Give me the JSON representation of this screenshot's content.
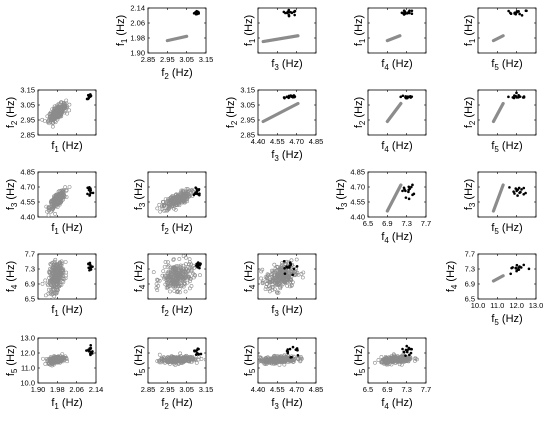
{
  "chart_data": {
    "type": "scatter-matrix",
    "variables": [
      {
        "id": "f1",
        "symbol": "f",
        "sub": "1",
        "unit": "(Hz)",
        "range": [
          1.9,
          2.14
        ],
        "ticks": [
          "1.90",
          "1.98",
          "2.06",
          "2.14"
        ]
      },
      {
        "id": "f2",
        "symbol": "f",
        "sub": "2",
        "unit": "(Hz)",
        "range": [
          2.85,
          3.15
        ],
        "ticks": [
          "2.85",
          "2.95",
          "3.05",
          "3.15"
        ]
      },
      {
        "id": "f3",
        "symbol": "f",
        "sub": "3",
        "unit": "(Hz)",
        "range": [
          4.4,
          4.85
        ],
        "ticks": [
          "4.40",
          "4.55",
          "4.70",
          "4.85"
        ]
      },
      {
        "id": "f4",
        "symbol": "f",
        "sub": "4",
        "unit": "(Hz)",
        "range": [
          6.5,
          7.7
        ],
        "ticks": [
          "6.5",
          "6.9",
          "7.3",
          "7.7"
        ]
      },
      {
        "id": "f5",
        "symbol": "f",
        "sub": "5",
        "unit": "(Hz)",
        "range": [
          10.0,
          13.0
        ],
        "ticks": [
          "10.0",
          "11.0",
          "12.0",
          "13.0"
        ]
      }
    ],
    "series": [
      {
        "kind": "grey-line",
        "color": "#8c8c8c",
        "description_shown": "straight grey linear relation (upper triangle)"
      },
      {
        "kind": "grey-cloud",
        "color": "#8c8c8c",
        "description_shown": "grey open-circle scatter cloud (lower triangle)"
      },
      {
        "kind": "black-dots",
        "color": "#000000",
        "description_shown": "small black measured points"
      }
    ],
    "panels": [
      {
        "row": 0,
        "col": 1,
        "type": "line",
        "x": "f2",
        "y": "f1",
        "ticks_x": true,
        "ticks_y": true,
        "line": [
          [
            2.95,
            1.966
          ],
          [
            3.05,
            1.989
          ]
        ],
        "black_center": [
          3.105,
          2.115
        ],
        "black_spread": [
          0.008,
          0.006
        ]
      },
      {
        "row": 0,
        "col": 2,
        "type": "line",
        "x": "f3",
        "y": "f1",
        "line": [
          [
            4.44,
            1.961
          ],
          [
            4.71,
            1.992
          ]
        ],
        "black_center": [
          4.65,
          2.115
        ],
        "black_spread": [
          0.03,
          0.007
        ]
      },
      {
        "row": 0,
        "col": 3,
        "type": "line",
        "x": "f4",
        "y": "f1",
        "line": [
          [
            6.9,
            1.966
          ],
          [
            7.16,
            1.992
          ]
        ],
        "black_center": [
          7.32,
          2.115
        ],
        "black_spread": [
          0.06,
          0.007
        ]
      },
      {
        "row": 0,
        "col": 4,
        "type": "line",
        "x": "f5",
        "y": "f1",
        "line": [
          [
            10.8,
            1.966
          ],
          [
            11.3,
            1.992
          ]
        ],
        "black_center": [
          12.1,
          2.115
        ],
        "black_spread": [
          0.25,
          0.007
        ]
      },
      {
        "row": 1,
        "col": 0,
        "type": "cloud",
        "x": "f1",
        "y": "f2",
        "ticks_y": true,
        "cloud_center": [
          1.98,
          3.0
        ],
        "cloud_spread": [
          0.018,
          0.03
        ],
        "cloud_corr": 0.7,
        "black_center": [
          2.115,
          3.105
        ],
        "black_spread": [
          0.006,
          0.008
        ]
      },
      {
        "row": 1,
        "col": 2,
        "type": "line",
        "x": "f3",
        "y": "f2",
        "ticks_x": true,
        "ticks_y": true,
        "line": [
          [
            4.44,
            2.94
          ],
          [
            4.71,
            3.06
          ]
        ],
        "black_center": [
          4.65,
          3.105
        ],
        "black_spread": [
          0.03,
          0.008
        ]
      },
      {
        "row": 1,
        "col": 3,
        "type": "line",
        "x": "f4",
        "y": "f2",
        "line": [
          [
            6.9,
            2.94
          ],
          [
            7.18,
            3.06
          ]
        ],
        "black_center": [
          7.32,
          3.105
        ],
        "black_spread": [
          0.07,
          0.008
        ]
      },
      {
        "row": 1,
        "col": 4,
        "type": "line",
        "x": "f5",
        "y": "f2",
        "line": [
          [
            10.8,
            2.94
          ],
          [
            11.3,
            3.06
          ]
        ],
        "black_center": [
          12.1,
          3.105
        ],
        "black_spread": [
          0.25,
          0.008
        ]
      },
      {
        "row": 2,
        "col": 0,
        "type": "cloud",
        "x": "f1",
        "y": "f3",
        "ticks_y": true,
        "cloud_center": [
          1.98,
          4.57
        ],
        "cloud_spread": [
          0.016,
          0.045
        ],
        "cloud_corr": 0.75,
        "black_center": [
          2.115,
          4.66
        ],
        "black_spread": [
          0.006,
          0.03
        ]
      },
      {
        "row": 2,
        "col": 1,
        "type": "cloud",
        "x": "f2",
        "y": "f3",
        "cloud_center": [
          3.0,
          4.57
        ],
        "cloud_spread": [
          0.035,
          0.045
        ],
        "cloud_corr": 0.7,
        "black_center": [
          3.105,
          4.66
        ],
        "black_spread": [
          0.008,
          0.03
        ]
      },
      {
        "row": 2,
        "col": 3,
        "type": "line",
        "x": "f4",
        "y": "f3",
        "ticks_x": true,
        "ticks_y": true,
        "line": [
          [
            6.9,
            4.46
          ],
          [
            7.18,
            4.72
          ]
        ],
        "black_center": [
          7.32,
          4.66
        ],
        "black_spread": [
          0.06,
          0.03
        ]
      },
      {
        "row": 2,
        "col": 4,
        "type": "line",
        "x": "f5",
        "y": "f3",
        "line": [
          [
            10.8,
            4.46
          ],
          [
            11.3,
            4.72
          ]
        ],
        "black_center": [
          12.1,
          4.66
        ],
        "black_spread": [
          0.25,
          0.03
        ]
      },
      {
        "row": 3,
        "col": 0,
        "type": "cloud",
        "x": "f1",
        "y": "f4",
        "ticks_y": true,
        "cloud_center": [
          1.975,
          7.1
        ],
        "cloud_spread": [
          0.015,
          0.2
        ],
        "cloud_corr": 0.3,
        "black_center": [
          2.115,
          7.35
        ],
        "black_spread": [
          0.006,
          0.08
        ]
      },
      {
        "row": 3,
        "col": 1,
        "type": "cloud",
        "x": "f2",
        "y": "f4",
        "cloud_center": [
          3.0,
          7.1
        ],
        "cloud_spread": [
          0.04,
          0.18
        ],
        "cloud_corr": 0.2,
        "black_center": [
          3.105,
          7.35
        ],
        "black_spread": [
          0.008,
          0.08
        ]
      },
      {
        "row": 3,
        "col": 2,
        "type": "cloud",
        "x": "f3",
        "y": "f4",
        "cloud_center": [
          4.58,
          7.1
        ],
        "cloud_spread": [
          0.06,
          0.18
        ],
        "cloud_corr": 0.3,
        "black_center": [
          4.66,
          7.35
        ],
        "black_spread": [
          0.03,
          0.08
        ]
      },
      {
        "row": 3,
        "col": 4,
        "type": "line",
        "x": "f5",
        "y": "f4",
        "ticks_x": true,
        "ticks_y": true,
        "line": [
          [
            10.8,
            6.98
          ],
          [
            11.3,
            7.12
          ]
        ],
        "black_center": [
          12.1,
          7.32
        ],
        "black_spread": [
          0.25,
          0.07
        ]
      },
      {
        "row": 4,
        "col": 0,
        "type": "cloud",
        "x": "f1",
        "y": "f5",
        "ticks_x": true,
        "ticks_y": true,
        "cloud_center": [
          1.975,
          11.55
        ],
        "cloud_spread": [
          0.016,
          0.12
        ],
        "cloud_corr": 0.4,
        "black_center": [
          2.115,
          12.1
        ],
        "black_spread": [
          0.006,
          0.2
        ]
      },
      {
        "row": 4,
        "col": 1,
        "type": "cloud",
        "x": "f2",
        "y": "f5",
        "ticks_x": true,
        "cloud_center": [
          3.0,
          11.55
        ],
        "cloud_spread": [
          0.045,
          0.12
        ],
        "cloud_corr": 0.3,
        "black_center": [
          3.105,
          12.1
        ],
        "black_spread": [
          0.008,
          0.2
        ]
      },
      {
        "row": 4,
        "col": 2,
        "type": "cloud",
        "x": "f3",
        "y": "f5",
        "ticks_x": true,
        "cloud_center": [
          4.56,
          11.55
        ],
        "cloud_spread": [
          0.07,
          0.12
        ],
        "cloud_corr": 0.3,
        "black_center": [
          4.66,
          12.1
        ],
        "black_spread": [
          0.03,
          0.2
        ]
      },
      {
        "row": 4,
        "col": 3,
        "type": "cloud",
        "x": "f4",
        "y": "f5",
        "ticks_x": true,
        "cloud_center": [
          7.1,
          11.55
        ],
        "cloud_spread": [
          0.16,
          0.12
        ],
        "cloud_corr": 0.3,
        "black_center": [
          7.32,
          12.1
        ],
        "black_spread": [
          0.06,
          0.2
        ]
      }
    ]
  }
}
